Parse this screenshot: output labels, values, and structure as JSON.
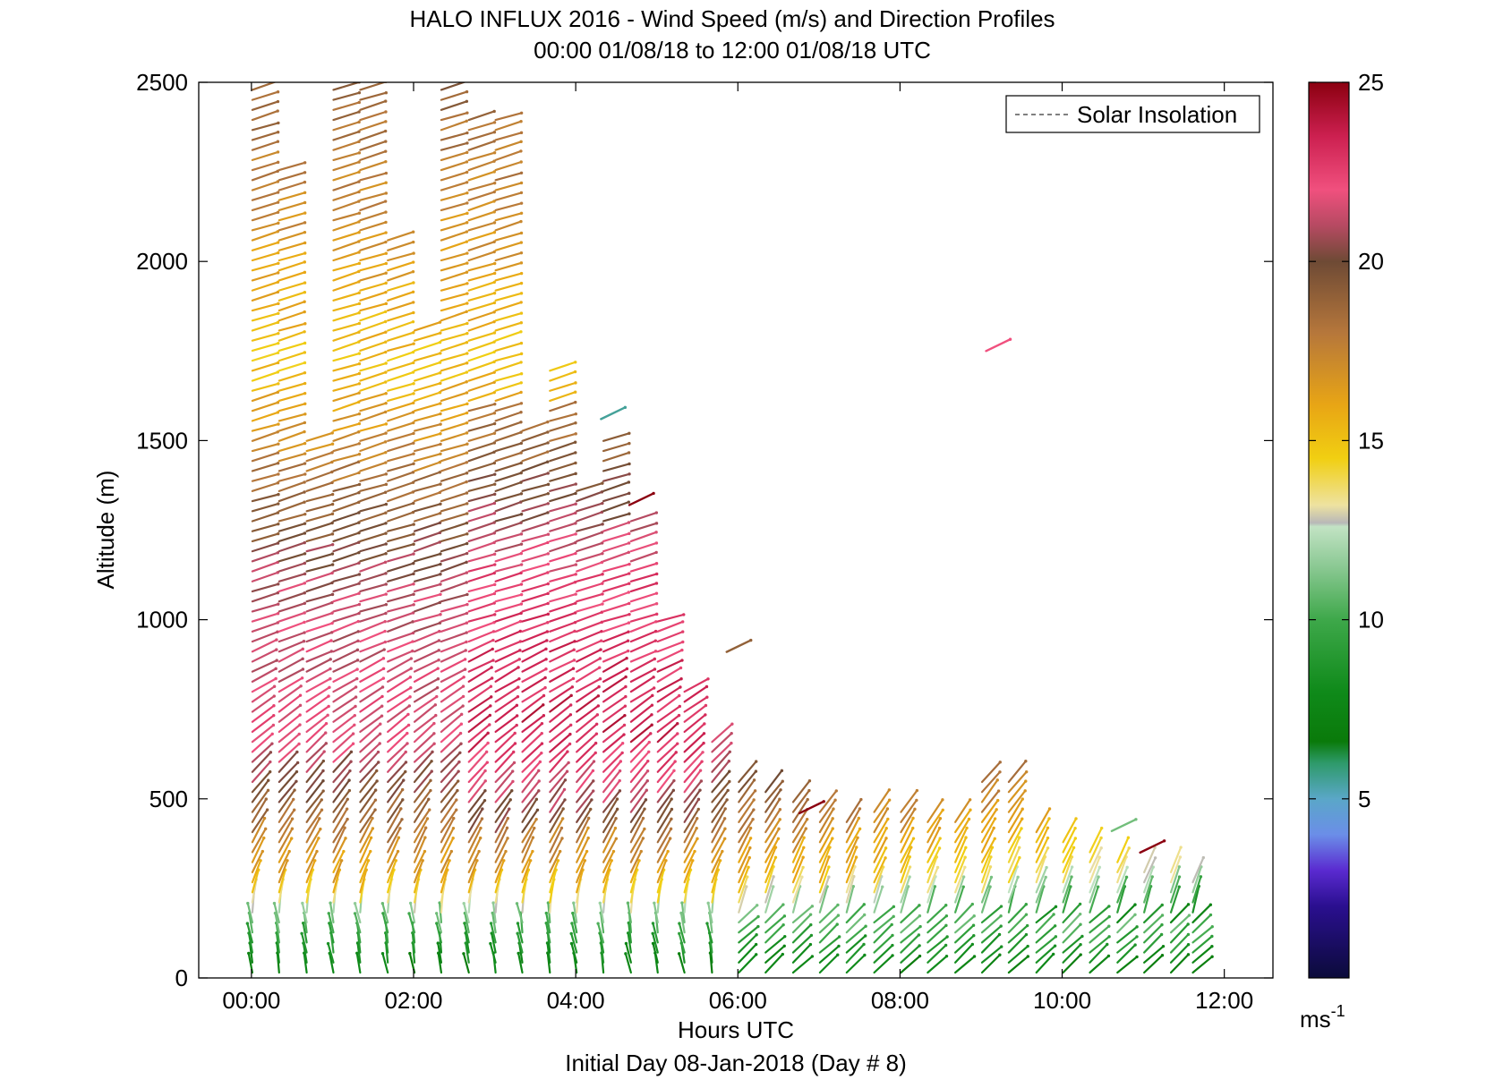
{
  "chart_data": {
    "type": "wind-barb",
    "title": "HALO INFLUX 2016 - Wind Speed (m/s) and Direction Profiles",
    "subtitle": "00:00 01/08/18 to 12:00 01/08/18  UTC",
    "xlabel": "Hours UTC",
    "xlabel2": "Initial Day 08-Jan-2018 (Day # 8)",
    "ylabel": "Altitude (m)",
    "xlim": [
      -0.65,
      12.6
    ],
    "ylim": [
      0,
      2500
    ],
    "x_ticks": [
      {
        "value": 0,
        "label": "00:00"
      },
      {
        "value": 2,
        "label": "02:00"
      },
      {
        "value": 4,
        "label": "04:00"
      },
      {
        "value": 6,
        "label": "06:00"
      },
      {
        "value": 8,
        "label": "08:00"
      },
      {
        "value": 10,
        "label": "10:00"
      },
      {
        "value": 12,
        "label": "12:00"
      }
    ],
    "y_ticks": [
      {
        "value": 0,
        "label": "0"
      },
      {
        "value": 500,
        "label": "500"
      },
      {
        "value": 1000,
        "label": "1000"
      },
      {
        "value": 1500,
        "label": "1500"
      },
      {
        "value": 2000,
        "label": "2000"
      },
      {
        "value": 2500,
        "label": "2500"
      }
    ],
    "legend": {
      "entry": "Solar Insolation",
      "style": "dashed",
      "placement": "top-right"
    },
    "colorbar": {
      "min": 0,
      "max": 25,
      "unit_base": "ms",
      "unit_exp": "-1",
      "ticks": [
        {
          "value": 5,
          "label": "5"
        },
        {
          "value": 10,
          "label": "10"
        },
        {
          "value": 15,
          "label": "15"
        },
        {
          "value": 20,
          "label": "20"
        },
        {
          "value": 25,
          "label": "25"
        }
      ],
      "stops": [
        {
          "v": 0,
          "c": "#0b0b3a"
        },
        {
          "v": 2,
          "c": "#2a0f8f"
        },
        {
          "v": 3,
          "c": "#5a2ad0"
        },
        {
          "v": 4,
          "c": "#6b8ee8"
        },
        {
          "v": 5,
          "c": "#5aa7c8"
        },
        {
          "v": 6,
          "c": "#2e9a6a"
        },
        {
          "v": 6.6,
          "c": "#0a7a0a"
        },
        {
          "v": 8,
          "c": "#0f8a1a"
        },
        {
          "v": 10,
          "c": "#3ea84a"
        },
        {
          "v": 11.5,
          "c": "#8cc994"
        },
        {
          "v": 12.6,
          "c": "#c2e3c4"
        },
        {
          "v": 12.7,
          "c": "#b8b8b8"
        },
        {
          "v": 13.2,
          "c": "#eee2a0"
        },
        {
          "v": 14.5,
          "c": "#f1cf12"
        },
        {
          "v": 16,
          "c": "#e8a515"
        },
        {
          "v": 18,
          "c": "#b6773b"
        },
        {
          "v": 20,
          "c": "#6e4a35"
        },
        {
          "v": 21,
          "c": "#b64a62"
        },
        {
          "v": 22,
          "c": "#f0507e"
        },
        {
          "v": 23.5,
          "c": "#cc2050"
        },
        {
          "v": 25,
          "c": "#8b0010"
        }
      ]
    },
    "profile_times": [
      0.1,
      0.43,
      0.77,
      1.1,
      1.43,
      1.77,
      2.1,
      2.43,
      2.77,
      3.1,
      3.43,
      3.77,
      4.1,
      4.43,
      4.77,
      5.1,
      5.43,
      5.77,
      6.1,
      6.43,
      6.77,
      7.1,
      7.43,
      7.77,
      8.1,
      8.43,
      8.77,
      9.1,
      9.43,
      9.77,
      10.1,
      10.43,
      10.77,
      11.1,
      11.43,
      11.7
    ],
    "profile_tops_m": [
      2480,
      2280,
      1500,
      2490,
      2490,
      2080,
      1830,
      2490,
      2400,
      2400,
      1530,
      1700,
      1370,
      1500,
      1290,
      1000,
      820,
      660,
      570,
      530,
      500,
      480,
      460,
      490,
      480,
      450,
      440,
      560,
      570,
      410,
      390,
      370,
      330,
      320,
      320,
      290
    ],
    "speed_profile_knots": [
      {
        "alt_m": 0,
        "speed_ms": 7
      },
      {
        "alt_m": 150,
        "speed_ms": 11
      },
      {
        "alt_m": 260,
        "speed_ms": 16
      },
      {
        "alt_m": 650,
        "speed_ms": 22
      },
      {
        "alt_m": 1100,
        "speed_ms": 21
      },
      {
        "alt_m": 1700,
        "speed_ms": 15
      },
      {
        "alt_m": 2500,
        "speed_ms": 19
      }
    ],
    "isolated_vectors": [
      {
        "time": 9.15,
        "alt_m": 1750,
        "speed_ms": 22
      },
      {
        "time": 5.95,
        "alt_m": 910,
        "speed_ms": 19
      },
      {
        "time": 4.4,
        "alt_m": 1560,
        "speed_ms": 5.5
      },
      {
        "time": 4.75,
        "alt_m": 1320,
        "speed_ms": 25
      },
      {
        "time": 6.85,
        "alt_m": 460,
        "speed_ms": 25
      },
      {
        "time": 10.7,
        "alt_m": 410,
        "speed_ms": 11
      },
      {
        "time": 11.05,
        "alt_m": 350,
        "speed_ms": 25
      }
    ]
  }
}
